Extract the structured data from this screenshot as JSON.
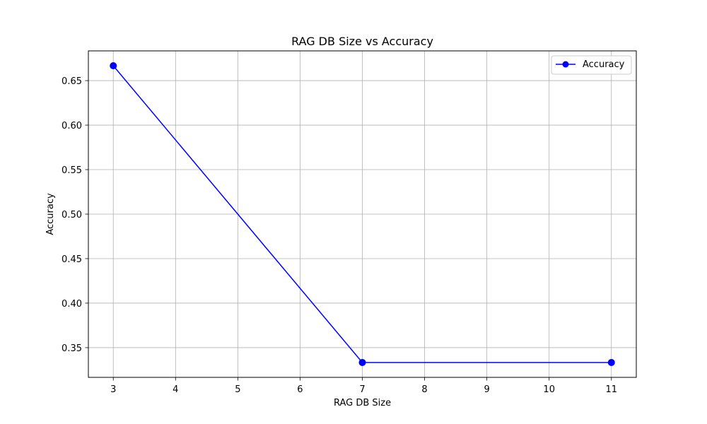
{
  "chart_data": {
    "type": "line",
    "title": "RAG DB Size vs Accuracy",
    "xlabel": "RAG DB Size",
    "ylabel": "Accuracy",
    "x_ticks": [
      3,
      4,
      5,
      6,
      7,
      8,
      9,
      10,
      11
    ],
    "y_ticks": [
      0.35,
      0.4,
      0.45,
      0.5,
      0.55,
      0.6,
      0.65
    ],
    "y_tick_labels": [
      "0.35",
      "0.40",
      "0.45",
      "0.50",
      "0.55",
      "0.60",
      "0.65"
    ],
    "xlim": [
      2.6,
      11.4
    ],
    "ylim": [
      0.3166,
      0.6834
    ],
    "grid": true,
    "legend_position": "top-right",
    "series": [
      {
        "name": "Accuracy",
        "color": "#0000ff",
        "marker": "circle",
        "points": [
          {
            "x": 3,
            "y": 0.6667
          },
          {
            "x": 7,
            "y": 0.3333
          },
          {
            "x": 11,
            "y": 0.3333
          }
        ]
      }
    ]
  }
}
